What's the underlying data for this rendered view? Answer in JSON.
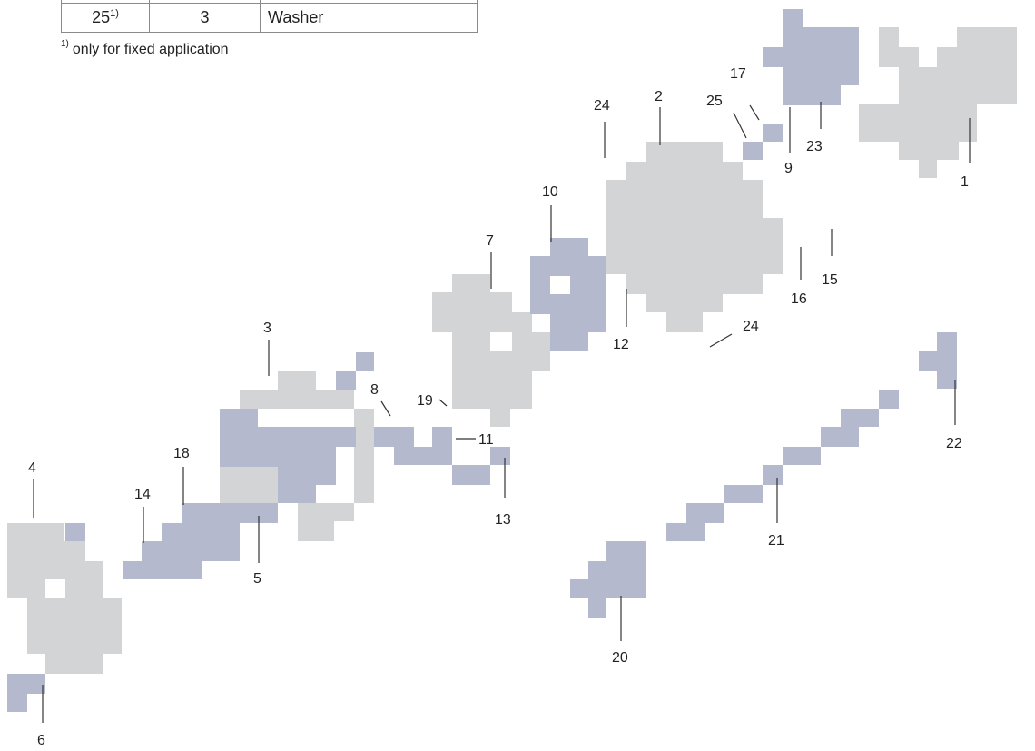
{
  "table": {
    "rows": [
      {
        "pos": "25",
        "pos_note": "1)",
        "qty": "3",
        "desc": "Washer"
      }
    ]
  },
  "footnote": {
    "mark": "1)",
    "text": "only for fixed application"
  },
  "colors": {
    "grey_part": "#d3d4d6",
    "blue_part": "#b4b9cd",
    "text": "#222222",
    "leader": "#333333"
  },
  "callouts": {
    "c1": "1",
    "c2": "2",
    "c3": "3",
    "c4": "4",
    "c5": "5",
    "c6": "6",
    "c7": "7",
    "c8": "8",
    "c9": "9",
    "c10": "10",
    "c11": "11",
    "c12": "12",
    "c13": "13",
    "c14": "14",
    "c15": "15",
    "c16": "16",
    "c17": "17",
    "c18": "18",
    "c19": "19",
    "c20": "20",
    "c21": "21",
    "c22": "22",
    "c23": "23",
    "c24a": "24",
    "c24b": "24",
    "c25": "25"
  }
}
